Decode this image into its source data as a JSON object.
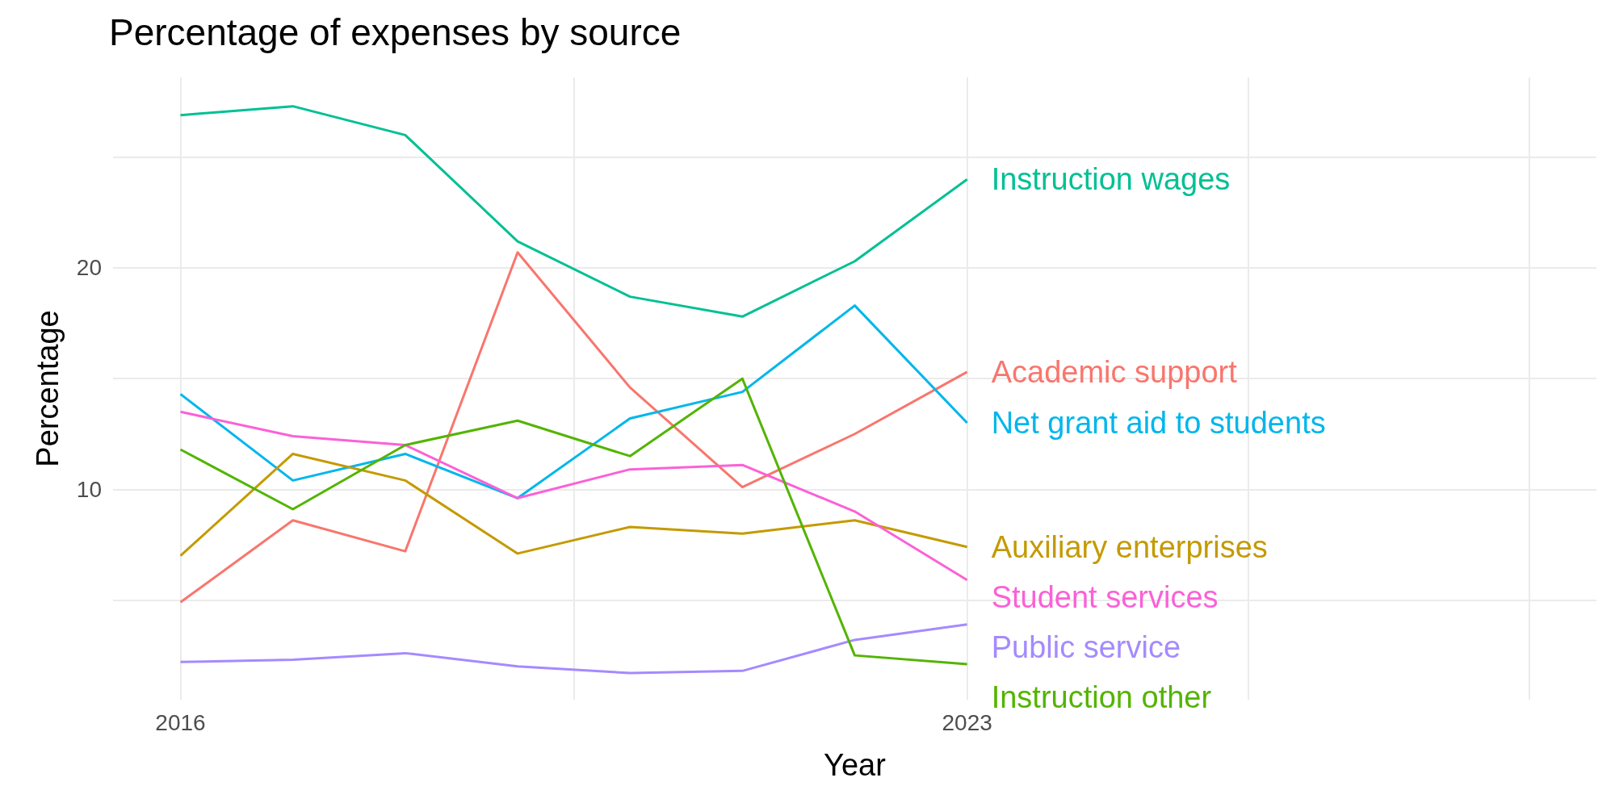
{
  "chart_data": {
    "type": "line",
    "title": "Percentage of expenses by source",
    "xlabel": "Year",
    "ylabel": "Percentage",
    "x": [
      2016,
      2017,
      2018,
      2019,
      2020,
      2021,
      2022,
      2023
    ],
    "series": [
      {
        "name": "Instruction wages",
        "color": "#00c094",
        "values": [
          26.9,
          27.3,
          26.0,
          21.2,
          18.7,
          17.8,
          20.3,
          24.0
        ]
      },
      {
        "name": "Academic support",
        "color": "#f8766d",
        "values": [
          4.9,
          8.6,
          7.2,
          20.7,
          14.6,
          10.1,
          12.5,
          15.3
        ]
      },
      {
        "name": "Net grant aid to students",
        "color": "#00b6eb",
        "values": [
          14.3,
          10.4,
          11.6,
          9.6,
          13.2,
          14.4,
          18.3,
          13.0
        ]
      },
      {
        "name": "Auxiliary enterprises",
        "color": "#c49a00",
        "values": [
          7.0,
          11.6,
          10.4,
          7.1,
          8.3,
          8.0,
          8.6,
          7.4
        ]
      },
      {
        "name": "Student services",
        "color": "#fb61d7",
        "values": [
          13.5,
          12.4,
          12.0,
          9.6,
          10.9,
          11.1,
          9.0,
          5.9
        ]
      },
      {
        "name": "Public service",
        "color": "#a58aff",
        "values": [
          2.2,
          2.3,
          2.6,
          2.0,
          1.7,
          1.8,
          3.2,
          3.9
        ]
      },
      {
        "name": "Instruction other",
        "color": "#53b400",
        "values": [
          11.8,
          9.1,
          12.0,
          13.1,
          11.5,
          15.0,
          2.5,
          2.1
        ]
      }
    ],
    "xlim": [
      2015.4,
      2028.6
    ],
    "xticks": [
      2016,
      {
        "value": 2019.5,
        "label": null
      },
      2023,
      {
        "value": 2025.5,
        "label": null
      },
      {
        "value": 2028,
        "label": null
      }
    ],
    "ylim": [
      0.5,
      28.6
    ],
    "yticks": [
      {
        "value": 5,
        "label": null
      },
      10,
      {
        "value": 15,
        "label": null
      },
      20,
      {
        "value": 25,
        "label": null
      }
    ],
    "grid": true,
    "marker": "none"
  }
}
